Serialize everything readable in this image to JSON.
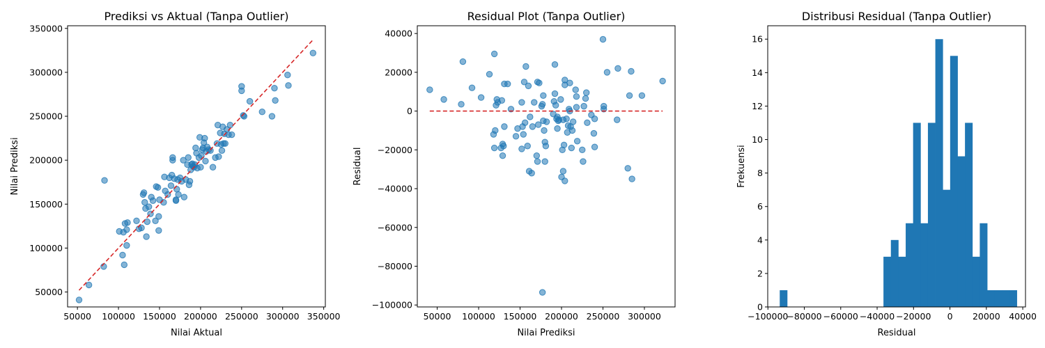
{
  "colors": {
    "point": "#1f77b4",
    "ref_line": "#d62728",
    "bar": "#1f77b4",
    "axis": "#000000"
  },
  "chart_data": [
    {
      "type": "scatter",
      "title": "Prediksi vs Aktual (Tanpa Outlier)",
      "xlabel": "Nilai Aktual",
      "ylabel": "Nilai Prediksi",
      "xlim": [
        38000,
        352000
      ],
      "ylim": [
        33000,
        353000
      ],
      "xticks": [
        50000,
        100000,
        150000,
        200000,
        250000,
        300000,
        350000
      ],
      "xtick_labels": [
        "50000",
        "100000",
        "150000",
        "200000",
        "250000",
        "300000",
        "350000"
      ],
      "yticks": [
        50000,
        100000,
        150000,
        200000,
        250000,
        300000,
        350000
      ],
      "ytick_labels": [
        "50000",
        "100000",
        "150000",
        "200000",
        "250000",
        "300000",
        "350000"
      ],
      "grid": false,
      "reference_line": {
        "style": "dashed",
        "x": [
          52000,
          338000
        ],
        "y": [
          52000,
          338000
        ]
      },
      "points": [
        [
          52000,
          41000
        ],
        [
          64000,
          58000
        ],
        [
          82000,
          79000
        ],
        [
          83000,
          177000
        ],
        [
          101000,
          119000
        ],
        [
          105000,
          92000
        ],
        [
          106000,
          118000
        ],
        [
          107000,
          81000
        ],
        [
          108000,
          128000
        ],
        [
          110000,
          103000
        ],
        [
          110000,
          121000
        ],
        [
          111000,
          129000
        ],
        [
          122000,
          131000
        ],
        [
          125000,
          122000
        ],
        [
          128000,
          123000
        ],
        [
          130000,
          161000
        ],
        [
          131000,
          163000
        ],
        [
          132000,
          152000
        ],
        [
          133000,
          145000
        ],
        [
          134000,
          113000
        ],
        [
          135000,
          130000
        ],
        [
          137000,
          147000
        ],
        [
          139000,
          139000
        ],
        [
          140000,
          158000
        ],
        [
          142000,
          154000
        ],
        [
          145000,
          131000
        ],
        [
          146000,
          170000
        ],
        [
          148000,
          169000
        ],
        [
          149000,
          136000
        ],
        [
          149000,
          120000
        ],
        [
          150000,
          155000
        ],
        [
          155000,
          152000
        ],
        [
          156000,
          181000
        ],
        [
          157000,
          165000
        ],
        [
          160000,
          161000
        ],
        [
          162000,
          180000
        ],
        [
          164000,
          171000
        ],
        [
          165000,
          183000
        ],
        [
          166000,
          200000
        ],
        [
          166000,
          203000
        ],
        [
          168000,
          179000
        ],
        [
          170000,
          154000
        ],
        [
          170000,
          155000
        ],
        [
          171000,
          167000
        ],
        [
          172000,
          178000
        ],
        [
          173000,
          161000
        ],
        [
          175000,
          180000
        ],
        [
          177000,
          176000
        ],
        [
          179000,
          200000
        ],
        [
          180000,
          158000
        ],
        [
          182000,
          178000
        ],
        [
          184000,
          195000
        ],
        [
          185000,
          203000
        ],
        [
          186000,
          172000
        ],
        [
          187000,
          176000
        ],
        [
          188000,
          189000
        ],
        [
          189000,
          195000
        ],
        [
          190000,
          196000
        ],
        [
          191000,
          193000
        ],
        [
          192000,
          192000
        ],
        [
          193000,
          195000
        ],
        [
          194000,
          214000
        ],
        [
          195000,
          208000
        ],
        [
          196000,
          191000
        ],
        [
          198000,
          203000
        ],
        [
          199000,
          226000
        ],
        [
          200000,
          192000
        ],
        [
          201000,
          205000
        ],
        [
          202000,
          212000
        ],
        [
          203000,
          214000
        ],
        [
          204000,
          220000
        ],
        [
          205000,
          225000
        ],
        [
          206000,
          199000
        ],
        [
          207000,
          210000
        ],
        [
          208000,
          215000
        ],
        [
          210000,
          212000
        ],
        [
          212000,
          211000
        ],
        [
          215000,
          192000
        ],
        [
          218000,
          203000
        ],
        [
          220000,
          219000
        ],
        [
          221000,
          240000
        ],
        [
          222000,
          204000
        ],
        [
          224000,
          231000
        ],
        [
          225000,
          218000
        ],
        [
          226000,
          211000
        ],
        [
          227000,
          238000
        ],
        [
          228000,
          219000
        ],
        [
          229000,
          230000
        ],
        [
          230000,
          219000
        ],
        [
          232000,
          235000
        ],
        [
          234000,
          229000
        ],
        [
          236000,
          240000
        ],
        [
          238000,
          229000
        ],
        [
          250000,
          284000
        ],
        [
          250000,
          279000
        ],
        [
          252000,
          251000
        ],
        [
          253000,
          250000
        ],
        [
          260000,
          267000
        ],
        [
          275000,
          255000
        ],
        [
          287000,
          250000
        ],
        [
          290000,
          282000
        ],
        [
          291000,
          268000
        ],
        [
          306000,
          297000
        ],
        [
          307000,
          285000
        ],
        [
          337000,
          322000
        ]
      ]
    },
    {
      "type": "scatter",
      "title": "Residual Plot (Tanpa Outlier)",
      "xlabel": "Nilai Prediksi",
      "ylabel": "Residual",
      "xlim": [
        26000,
        337000
      ],
      "ylim": [
        -101000,
        44000
      ],
      "xticks": [
        50000,
        100000,
        150000,
        200000,
        250000,
        300000
      ],
      "xtick_labels": [
        "50000",
        "100000",
        "150000",
        "200000",
        "250000",
        "300000"
      ],
      "yticks": [
        -100000,
        -80000,
        -60000,
        -40000,
        -20000,
        0,
        20000,
        40000
      ],
      "ytick_labels": [
        "−100000",
        "−80000",
        "−60000",
        "−40000",
        "−20000",
        "0",
        "20000",
        "40000"
      ],
      "grid": false,
      "reference_line": {
        "style": "dashed",
        "x": [
          41000,
          322000
        ],
        "y": [
          0,
          0
        ]
      },
      "points": [
        [
          41000,
          11000
        ],
        [
          58000,
          6000
        ],
        [
          79000,
          3500
        ],
        [
          81000,
          25500
        ],
        [
          92000,
          12000
        ],
        [
          103000,
          7000
        ],
        [
          113000,
          19000
        ],
        [
          118000,
          -12000
        ],
        [
          119000,
          -19000
        ],
        [
          119000,
          29500
        ],
        [
          120000,
          -10000
        ],
        [
          121000,
          3000
        ],
        [
          122000,
          6000
        ],
        [
          123000,
          4500
        ],
        [
          127000,
          -19000
        ],
        [
          128000,
          5500
        ],
        [
          129000,
          -17000
        ],
        [
          129000,
          -23000
        ],
        [
          130000,
          -18000
        ],
        [
          131000,
          14000
        ],
        [
          131000,
          -8000
        ],
        [
          135000,
          14000
        ],
        [
          139000,
          1000
        ],
        [
          145000,
          -13000
        ],
        [
          147000,
          -9000
        ],
        [
          152000,
          4500
        ],
        [
          152000,
          -19500
        ],
        [
          153000,
          -8000
        ],
        [
          154000,
          -12000
        ],
        [
          155000,
          15000
        ],
        [
          156000,
          -6000
        ],
        [
          157000,
          23000
        ],
        [
          159000,
          -18000
        ],
        [
          160000,
          13000
        ],
        [
          161000,
          -31000
        ],
        [
          162000,
          -3000
        ],
        [
          164000,
          -32000
        ],
        [
          165000,
          -8000
        ],
        [
          167000,
          4500
        ],
        [
          170000,
          -23000
        ],
        [
          171000,
          -26000
        ],
        [
          171000,
          15000
        ],
        [
          172000,
          -7000
        ],
        [
          173000,
          14500
        ],
        [
          176000,
          2500
        ],
        [
          177000,
          -93500
        ],
        [
          177000,
          3500
        ],
        [
          178000,
          -5000
        ],
        [
          178000,
          8000
        ],
        [
          179000,
          -10000
        ],
        [
          180000,
          -26000
        ],
        [
          180000,
          -16000
        ],
        [
          181000,
          -18000
        ],
        [
          182000,
          -5500
        ],
        [
          190000,
          -1500
        ],
        [
          191000,
          5000
        ],
        [
          192000,
          9000
        ],
        [
          192000,
          24000
        ],
        [
          193000,
          3000
        ],
        [
          194000,
          -4000
        ],
        [
          195000,
          -9000
        ],
        [
          195000,
          -3000
        ],
        [
          196000,
          -5000
        ],
        [
          197000,
          -4500
        ],
        [
          199000,
          6000
        ],
        [
          200000,
          -34000
        ],
        [
          201000,
          -20000
        ],
        [
          202000,
          -4500
        ],
        [
          202000,
          -31000
        ],
        [
          203000,
          -17500
        ],
        [
          204000,
          13500
        ],
        [
          204000,
          -36000
        ],
        [
          204000,
          16000
        ],
        [
          206000,
          -4000
        ],
        [
          207000,
          -11000
        ],
        [
          208000,
          -7500
        ],
        [
          209000,
          1000
        ],
        [
          210000,
          0
        ],
        [
          210000,
          14500
        ],
        [
          211000,
          -8000
        ],
        [
          212000,
          -19000
        ],
        [
          213000,
          -10000
        ],
        [
          214000,
          -5500
        ],
        [
          217000,
          11000
        ],
        [
          218000,
          2000
        ],
        [
          218000,
          7500
        ],
        [
          219000,
          -15500
        ],
        [
          225000,
          -20000
        ],
        [
          226000,
          -26000
        ],
        [
          227000,
          2500
        ],
        [
          229000,
          6500
        ],
        [
          230000,
          9500
        ],
        [
          231000,
          -6000
        ],
        [
          236000,
          -2000
        ],
        [
          239000,
          -11500
        ],
        [
          240000,
          -18500
        ],
        [
          240000,
          -4000
        ],
        [
          250000,
          37000
        ],
        [
          251000,
          2500
        ],
        [
          251000,
          1000
        ],
        [
          255000,
          20000
        ],
        [
          267000,
          -4500
        ],
        [
          268000,
          22000
        ],
        [
          280000,
          -29500
        ],
        [
          282000,
          8000
        ],
        [
          284000,
          20500
        ],
        [
          285000,
          -35000
        ],
        [
          297000,
          8000
        ],
        [
          322000,
          15500
        ]
      ]
    },
    {
      "type": "bar",
      "subtype": "histogram",
      "title": "Distribusi Residual (Tanpa Outlier)",
      "xlabel": "Residual",
      "ylabel": "Frekuensi",
      "xlim": [
        -100100,
        41500
      ],
      "ylim": [
        0,
        16.8
      ],
      "xticks": [
        -100000,
        -80000,
        -60000,
        -40000,
        -20000,
        0,
        20000,
        40000
      ],
      "xtick_labels": [
        "−100000",
        "−80000",
        "−60000",
        "−40000",
        "−20000",
        "0",
        "20000",
        "40000"
      ],
      "yticks": [
        0,
        2,
        4,
        6,
        8,
        10,
        12,
        14,
        16
      ],
      "ytick_labels": [
        "0",
        "2",
        "4",
        "6",
        "8",
        "10",
        "12",
        "14",
        "16"
      ],
      "grid": false,
      "bin_edges": [
        -93500,
        -89430,
        -85360,
        -81290,
        -77220,
        -73150,
        -69080,
        -65010,
        -60940,
        -56870,
        -52800,
        -48730,
        -44660,
        -40590,
        -36520,
        -32450,
        -28380,
        -24310,
        -20240,
        -16170,
        -12100,
        -8030,
        -3960,
        110,
        4180,
        8250,
        12320,
        16390,
        20460,
        24530,
        28600,
        32670,
        36740
      ],
      "values": [
        1,
        0,
        0,
        0,
        0,
        0,
        0,
        0,
        0,
        0,
        0,
        0,
        0,
        0,
        3,
        4,
        3,
        5,
        11,
        5,
        11,
        16,
        7,
        15,
        9,
        11,
        3,
        5,
        1,
        1,
        1,
        1
      ]
    }
  ]
}
